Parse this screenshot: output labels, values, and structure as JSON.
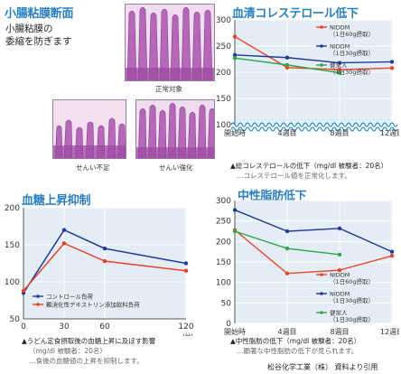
{
  "histology": {
    "title": "小腸粘膜断面",
    "subtitle_line1": "小腸粘膜の",
    "subtitle_line2": "委縮を防ぎます",
    "images": [
      {
        "label": "正常対象"
      },
      {
        "label": "せんい不足"
      },
      {
        "label": "せんい強化"
      }
    ]
  },
  "source_credit": "松谷化学工業（株） 資料より引用",
  "colors": {
    "title": "#2a7fc0",
    "panel_bg": "#e4edf6",
    "grid": "#ffffff",
    "red": "#e8432a",
    "navy": "#1e3a9c",
    "green": "#2aa84a",
    "wave": "#2a8fd0"
  },
  "chart_data": [
    {
      "id": "cholesterol",
      "type": "line",
      "title": "血清コレステロール低下",
      "categories": [
        "開始時",
        "4週目",
        "8週目",
        "12週目"
      ],
      "y_ticks": [
        150,
        200,
        250,
        300
      ],
      "axis_break": true,
      "axis_break_value": 100,
      "axis_break_label": "100",
      "ylim": [
        100,
        300
      ],
      "series": [
        {
          "name": "NIDDM",
          "sub": "（1日60g摂取）",
          "color": "red",
          "values": [
            268,
            209,
            205,
            208
          ]
        },
        {
          "name": "NIDDM",
          "sub": "（1日30g摂取）",
          "color": "navy",
          "values": [
            233,
            228,
            218,
            220
          ]
        },
        {
          "name": "健常人",
          "sub": "（1日30g摂取）",
          "color": "green",
          "values": [
            227,
            214,
            199,
            null
          ]
        }
      ],
      "note_line1": "▲総コレステロールの低下（mg/dl 被験者：20名）",
      "note_line2": "…コレステロール値を正常化します。"
    },
    {
      "id": "blood_sugar",
      "type": "line",
      "title": "血糖上昇抑制",
      "x": [
        0,
        30,
        60,
        120
      ],
      "x_unit": "(分)",
      "xlim": [
        0,
        120
      ],
      "y_ticks": [
        50,
        100,
        150,
        200
      ],
      "ylim": [
        50,
        200
      ],
      "series": [
        {
          "name": "コントロール負荷",
          "color": "navy",
          "values": [
            85,
            170,
            145,
            125
          ]
        },
        {
          "name": "難消化性デキストリン添加飲料負荷",
          "color": "red",
          "values": [
            88,
            152,
            128,
            115
          ]
        }
      ],
      "note_line1": "▲うどん定食摂取後の血糖上昇に及ぼす影響",
      "note_line2": "（mg/dl 被験者：20名）",
      "note_line3": "…食後の血糖値の上昇を抑制します。"
    },
    {
      "id": "triglyceride",
      "type": "line",
      "title": "中性脂肪低下",
      "categories": [
        "開始時",
        "4週目",
        "8週目",
        "12週目"
      ],
      "y_ticks": [
        0,
        50,
        100,
        150,
        200,
        250,
        300
      ],
      "ylim": [
        0,
        300
      ],
      "series": [
        {
          "name": "NIDDM",
          "sub": "（1日60g摂取）",
          "color": "red",
          "values": [
            228,
            122,
            130,
            165
          ]
        },
        {
          "name": "NIDDM",
          "sub": "（1日30g摂取）",
          "color": "navy",
          "values": [
            277,
            225,
            232,
            175
          ]
        },
        {
          "name": "健常人",
          "sub": "（1日30g摂取）",
          "color": "green",
          "values": [
            225,
            183,
            168,
            null
          ]
        }
      ],
      "note_line1": "▲中性脂肪の低下（mg/dl 被験者：20名）",
      "note_line2": "…顕著な中性脂肪の低下が見られます。"
    }
  ]
}
